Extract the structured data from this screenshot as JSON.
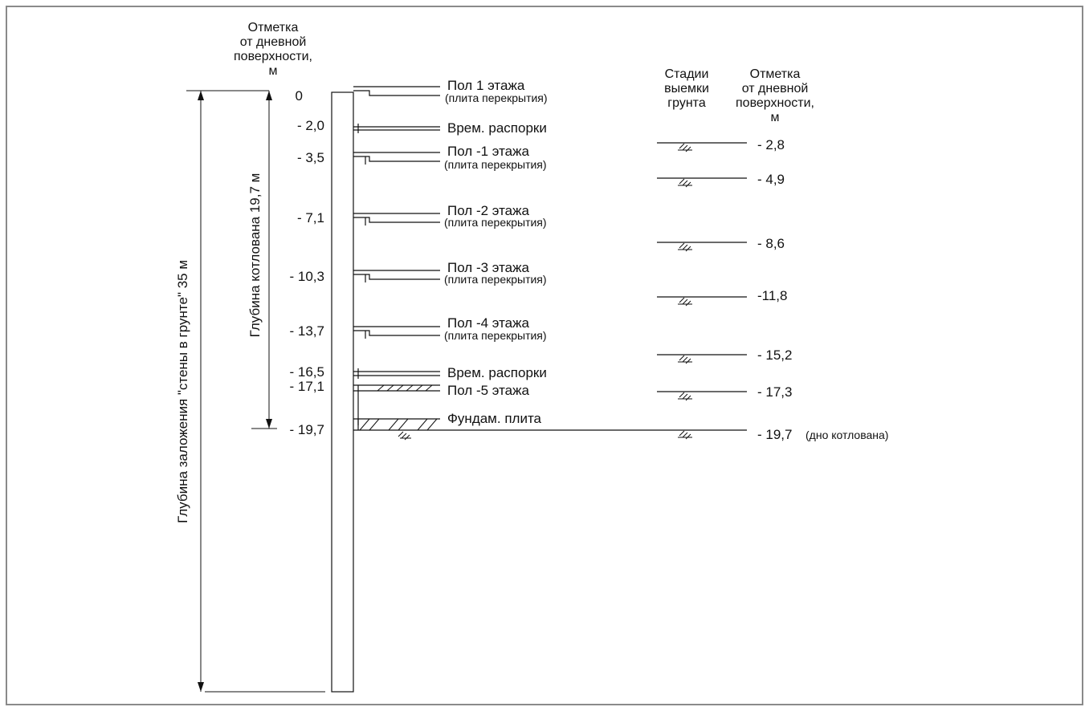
{
  "left_header": [
    "Отметка",
    "от дневной",
    "поверхности,",
    "м"
  ],
  "right_header_stages": [
    "Стадии",
    "выемки",
    "грунта"
  ],
  "right_header_marks": [
    "Отметка",
    "от дневной",
    "поверхности,",
    "м"
  ],
  "wall_depth_label": "Глубина заложения \"стены в грунте\" 35 м",
  "pit_depth_label": "Глубина котлована 19,7 м",
  "left_marks": [
    "0",
    "- 2,0",
    "- 3,5",
    "- 7,1",
    "- 10,3",
    "- 13,7",
    "- 16,5",
    "- 17,1",
    "- 19,7"
  ],
  "levels": [
    {
      "title": "Пол 1 этажа",
      "sub": "(плита перекрытия)"
    },
    {
      "title": "Врем. распорки",
      "sub": ""
    },
    {
      "title": "Пол -1 этажа",
      "sub": "(плита перекрытия)"
    },
    {
      "title": "Пол -2 этажа",
      "sub": "(плита перекрытия)"
    },
    {
      "title": "Пол -3 этажа",
      "sub": "(плита перекрытия)"
    },
    {
      "title": "Пол -4 этажа",
      "sub": "(плита перекрытия)"
    },
    {
      "title": "Врем. распорки",
      "sub": ""
    },
    {
      "title": "Пол -5 этажа",
      "sub": ""
    },
    {
      "title": "Фундам. плита",
      "sub": ""
    }
  ],
  "excavation_stages": [
    "- 2,8",
    "- 4,9",
    "- 8,6",
    "-11,8",
    "- 15,2",
    "- 17,3",
    "- 19,7"
  ],
  "pit_bottom_note": "(дно котлована)",
  "colors": {
    "line": "#111111",
    "frame": "#8a8a8a",
    "background": "#ffffff"
  }
}
